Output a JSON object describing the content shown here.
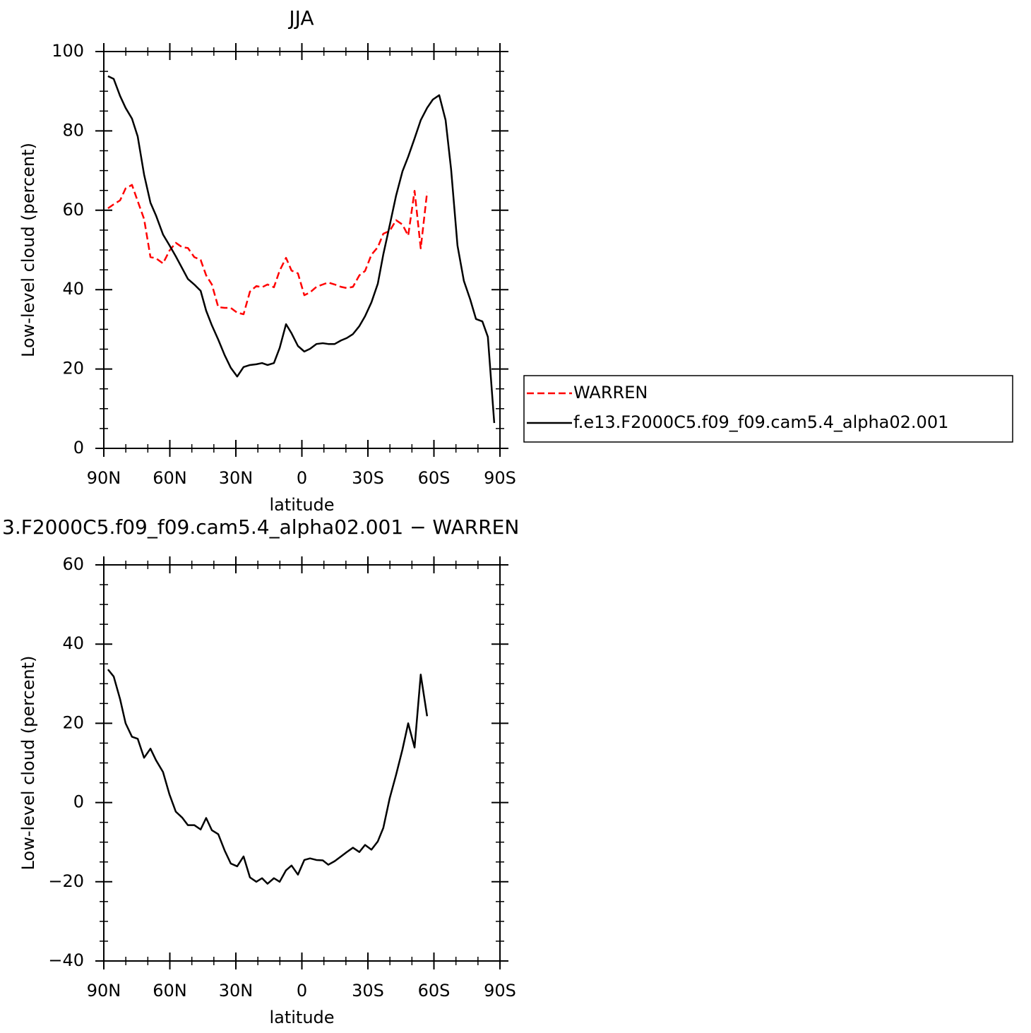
{
  "chart_data": [
    {
      "type": "line",
      "title": "JJA",
      "xlabel": "latitude",
      "ylabel": "Low-level cloud (percent)",
      "x": [
        88.1,
        85.5,
        82.6,
        80.1,
        77.2,
        74.6,
        71.7,
        68.8,
        66.3,
        63.1,
        60.2,
        57.3,
        54.4,
        51.8,
        48.9,
        46.0,
        43.5,
        40.9,
        38.0,
        35.1,
        32.3,
        29.4,
        26.5,
        23.6,
        20.7,
        18.1,
        15.6,
        12.7,
        10.1,
        7.2,
        4.7,
        1.8,
        -1.1,
        -3.7,
        -6.6,
        -9.5,
        -12.0,
        -14.9,
        -17.8,
        -20.4,
        -23.2,
        -26.1,
        -28.7,
        -31.6,
        -34.5,
        -37.0,
        -39.9,
        -42.8,
        -45.7,
        -48.3,
        -51.2,
        -54.0,
        -56.9,
        -59.5,
        -62.4,
        -65.3,
        -67.8,
        -70.7,
        -73.6,
        -76.5,
        -79.1,
        -82.0,
        -84.5,
        -87.4
      ],
      "series": [
        {
          "name": "WARREN",
          "color": "#ff0000",
          "dash": true,
          "values": [
            60.5,
            61.5,
            62.5,
            65.5,
            66.4,
            62.3,
            57.8,
            48.2,
            47.9,
            46.6,
            49.8,
            51.8,
            50.7,
            50.5,
            48.2,
            47.5,
            43.6,
            41.3,
            35.6,
            35.4,
            35.4,
            34.2,
            33.8,
            39.5,
            40.9,
            40.6,
            41.3,
            40.6,
            44.8,
            48.0,
            44.8,
            44.1,
            38.6,
            39.3,
            40.7,
            41.3,
            41.8,
            41.3,
            40.7,
            40.4,
            40.7,
            43.6,
            44.7,
            48.8,
            50.7,
            54.1,
            54.8,
            57.5,
            56.4,
            53.6,
            64.9,
            50.4,
            64.6,
            null,
            null,
            null,
            null,
            null,
            null,
            null,
            null,
            null,
            null,
            null
          ]
        },
        {
          "name": "f.e13.F2000C5.f09_f09.cam5.4_alpha02.001",
          "color": "#000000",
          "dash": false,
          "values": [
            93.8,
            93.1,
            88.8,
            85.8,
            83.1,
            78.6,
            69.0,
            61.9,
            58.7,
            53.9,
            51.2,
            48.4,
            45.4,
            42.7,
            41.3,
            39.7,
            34.7,
            31.0,
            27.4,
            23.5,
            20.3,
            18.1,
            20.5,
            21.0,
            21.2,
            21.5,
            21.0,
            21.5,
            25.3,
            31.3,
            29.0,
            25.8,
            24.4,
            25.1,
            26.3,
            26.5,
            26.3,
            26.3,
            27.2,
            27.8,
            28.8,
            30.8,
            33.3,
            36.8,
            41.5,
            48.9,
            56.2,
            63.7,
            69.8,
            73.5,
            78.1,
            82.7,
            85.8,
            87.9,
            89.0,
            82.7,
            70.3,
            51.1,
            42.2,
            37.5,
            32.6,
            32.0,
            28.1,
            6.4
          ]
        }
      ],
      "xlim": [
        90,
        -90
      ],
      "xticks": [
        {
          "value": 90,
          "label": "90N"
        },
        {
          "value": 60,
          "label": "60N"
        },
        {
          "value": 30,
          "label": "30N"
        },
        0,
        {
          "value": -30,
          "label": "30S"
        },
        {
          "value": -60,
          "label": "60S"
        },
        {
          "value": -90,
          "label": "90S"
        }
      ],
      "xminorticks": [
        80,
        70,
        50,
        40,
        20,
        10,
        -10,
        -20,
        -40,
        -50,
        -70,
        -80
      ],
      "ylim": [
        0,
        100
      ],
      "yticks": [
        0,
        20,
        40,
        60,
        80,
        100
      ],
      "yminorticks": [
        5,
        10,
        15,
        25,
        30,
        35,
        45,
        50,
        55,
        65,
        70,
        75,
        85,
        90,
        95
      ],
      "legend": "right"
    },
    {
      "type": "line",
      "title": "3.F2000C5.f09_f09.cam5.4_alpha02.001 − WARREN",
      "xlabel": "latitude",
      "ylabel": "Low-level cloud (percent)",
      "x": [
        88.1,
        85.5,
        82.6,
        80.1,
        77.2,
        74.6,
        71.7,
        68.8,
        66.3,
        63.1,
        60.2,
        57.3,
        54.4,
        51.8,
        48.9,
        46.0,
        43.5,
        40.9,
        38.0,
        35.1,
        32.3,
        29.4,
        26.5,
        23.6,
        20.7,
        18.1,
        15.6,
        12.7,
        10.1,
        7.2,
        4.7,
        1.8,
        -1.1,
        -3.7,
        -6.6,
        -9.5,
        -12.0,
        -14.9,
        -17.8,
        -20.4,
        -23.2,
        -26.1,
        -28.7,
        -31.6,
        -34.5,
        -37.0,
        -39.9,
        -42.8,
        -45.7,
        -48.3,
        -51.2,
        -54.0,
        -56.9
      ],
      "values": [
        33.6,
        31.8,
        26.1,
        20.0,
        16.6,
        16.1,
        11.3,
        13.6,
        10.7,
        7.7,
        2.1,
        -2.3,
        -3.8,
        -5.7,
        -5.7,
        -6.8,
        -3.9,
        -7.0,
        -8.0,
        -12.1,
        -15.4,
        -16.1,
        -13.6,
        -18.9,
        -20.0,
        -19.1,
        -20.5,
        -19.1,
        -20.0,
        -17.1,
        -15.9,
        -18.2,
        -14.5,
        -14.1,
        -14.5,
        -14.6,
        -15.7,
        -14.8,
        -13.6,
        -12.5,
        -11.4,
        -12.5,
        -10.7,
        -11.9,
        -9.8,
        -6.4,
        1.1,
        7.0,
        13.4,
        20.0,
        13.9,
        32.3,
        21.8
      ],
      "color": "#000000",
      "xlim": [
        90,
        -90
      ],
      "xticks": [
        {
          "value": 90,
          "label": "90N"
        },
        {
          "value": 60,
          "label": "60N"
        },
        {
          "value": 30,
          "label": "30N"
        },
        0,
        {
          "value": -30,
          "label": "30S"
        },
        {
          "value": -60,
          "label": "60S"
        },
        {
          "value": -90,
          "label": "90S"
        }
      ],
      "xminorticks": [
        80,
        70,
        50,
        40,
        20,
        10,
        -10,
        -20,
        -40,
        -50,
        -70,
        -80
      ],
      "ylim": [
        -40,
        60
      ],
      "yticks": [
        {
          "value": -40,
          "label": "−40"
        },
        {
          "value": -20,
          "label": "−20"
        },
        0,
        20,
        40,
        60
      ],
      "yminorticks": [
        -35,
        -30,
        -25,
        -15,
        -10,
        -5,
        5,
        10,
        15,
        25,
        30,
        35,
        45,
        50,
        55
      ]
    }
  ]
}
